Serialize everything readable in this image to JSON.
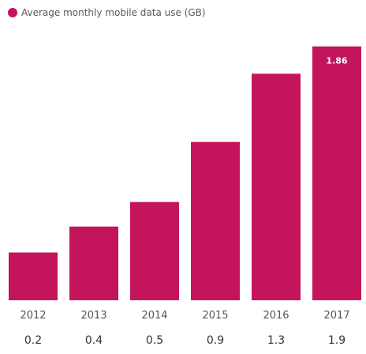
{
  "chart_data": {
    "type": "bar",
    "categories": [
      "2012",
      "2013",
      "2014",
      "2015",
      "2016",
      "2017"
    ],
    "series": [
      {
        "name": "Average monthly mobile data use (GB)",
        "values": [
          0.35,
          0.54,
          0.72,
          1.16,
          1.66,
          1.86
        ]
      }
    ],
    "category_labels": [
      "0.2",
      "0.4",
      "0.5",
      "0.9",
      "1.3",
      "1.9"
    ],
    "data_labels": [
      {
        "index": 5,
        "text": "1.86"
      }
    ],
    "legend_placement": "top-left",
    "grid": false,
    "ylim": [
      0,
      2.2
    ],
    "colors": {
      "bar": "#c4145c",
      "label_text": "#555555",
      "value_text": "#333333",
      "bar_label_text": "#ffffff"
    }
  }
}
